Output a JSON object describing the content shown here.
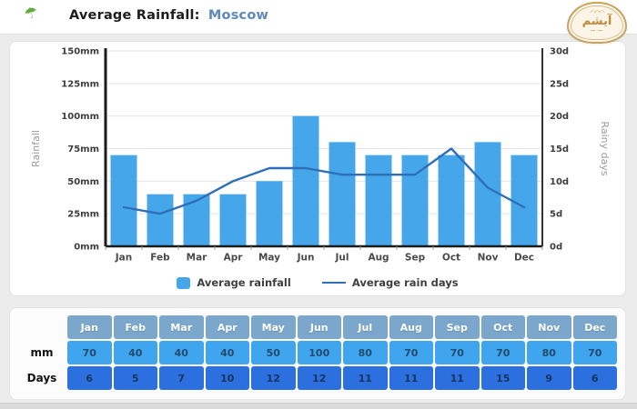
{
  "header": {
    "title_main": "Average Rainfall:",
    "title_city": "Moscow",
    "logo_text": "آیشم"
  },
  "colors": {
    "bar": "#46a6ea",
    "line": "#2e6fb7",
    "axis": "#1b1b1b",
    "grid": "#e4e4e4",
    "tick_text": "#3d3d3d",
    "axis_title": "#9a9a9a",
    "city_accent": "#5d89bd",
    "table_header_bg": "#7ba7cd",
    "table_mm_bg": "#3fa5ee",
    "table_days_bg": "#2c6fde",
    "table_mm_text": "#234a6e",
    "table_days_text": "#17335e"
  },
  "chart_data": {
    "type": "bar",
    "categories": [
      "Jan",
      "Feb",
      "Mar",
      "Apr",
      "May",
      "Jun",
      "Jul",
      "Aug",
      "Sep",
      "Oct",
      "Nov",
      "Dec"
    ],
    "series": [
      {
        "name": "Average rainfall",
        "type": "bar",
        "axis": "left",
        "unit": "mm",
        "values": [
          70,
          40,
          40,
          40,
          50,
          100,
          80,
          70,
          70,
          70,
          80,
          70
        ]
      },
      {
        "name": "Average rain days",
        "type": "line",
        "axis": "right",
        "unit": "d",
        "values": [
          6,
          5,
          7,
          10,
          12,
          12,
          11,
          11,
          11,
          15,
          9,
          6
        ]
      }
    ],
    "left_axis": {
      "label": "Rainfall",
      "min": 0,
      "max": 150,
      "ticks": [
        "0mm",
        "25mm",
        "50mm",
        "75mm",
        "100mm",
        "125mm",
        "150mm"
      ]
    },
    "right_axis": {
      "label": "Rainy days",
      "min": 0,
      "max": 30,
      "ticks": [
        "0d",
        "5d",
        "10d",
        "15d",
        "20d",
        "25d",
        "30d"
      ]
    },
    "legend_position": "bottom",
    "grid": true,
    "title": "Average Rainfall: Moscow"
  },
  "table": {
    "mm_label": "mm",
    "days_label": "Days",
    "months": [
      "Jan",
      "Feb",
      "Mar",
      "Apr",
      "May",
      "Jun",
      "Jul",
      "Aug",
      "Sep",
      "Oct",
      "Nov",
      "Dec"
    ],
    "mm": [
      70,
      40,
      40,
      40,
      50,
      100,
      80,
      70,
      70,
      70,
      80,
      70
    ],
    "days": [
      6,
      5,
      7,
      10,
      12,
      12,
      11,
      11,
      11,
      15,
      9,
      6
    ]
  }
}
